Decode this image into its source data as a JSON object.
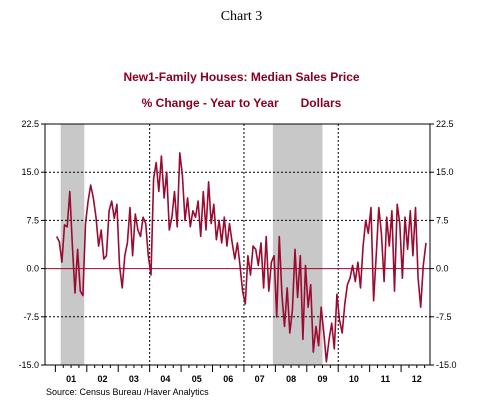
{
  "chart_number": "Chart 3",
  "source": "Source:  Census Bureau /Haver Analytics",
  "chart_data": {
    "type": "line",
    "title": "New1-Family Houses: Median Sales Price",
    "subtitle_left": "% Change - Year to Year",
    "subtitle_right": "Dollars",
    "ylim": [
      -15,
      22.5
    ],
    "xlim": [
      2000.67,
      2012.92
    ],
    "yticks": [
      "22.5",
      "15.0",
      "7.5",
      "0.0",
      "-7.5",
      "-15.0"
    ],
    "ytick_values": [
      22.5,
      15,
      7.5,
      0,
      -7.5,
      -15
    ],
    "year_labels": [
      "01",
      "02",
      "03",
      "04",
      "05",
      "06",
      "07",
      "08",
      "09",
      "10",
      "11",
      "12"
    ],
    "recession_shading": [
      [
        2001.17,
        2001.92
      ],
      [
        2007.92,
        2009.5
      ]
    ],
    "zero_line": true,
    "grid": "dashed vertical at year boundaries 2004, 2007, 2010; dashed horizontal at 15, 7.5, -7.5",
    "colors": {
      "line": "#9b0a30",
      "recession": "#c8c8c8",
      "zero_line": "#9b0a30",
      "grid": "#000000"
    },
    "series": [
      {
        "frequency": "monthly",
        "start": "2001-01",
        "values": [
          5.0,
          4.2,
          1.0,
          6.8,
          6.5,
          12.0,
          3.5,
          -3.8,
          3.0,
          -3.5,
          -4.2,
          7.0,
          10.5,
          13.0,
          11.0,
          8.0,
          3.5,
          6.0,
          1.5,
          2.0,
          9.0,
          10.5,
          7.8,
          10.0,
          0.5,
          -3.0,
          2.0,
          4.0,
          9.5,
          2.0,
          8.5,
          6.0,
          5.0,
          8.0,
          7.0,
          2.0,
          -1.0,
          14.0,
          16.5,
          12.0,
          17.5,
          11.0,
          15.0,
          6.0,
          8.0,
          12.0,
          6.5,
          18.0,
          14.5,
          7.5,
          11.0,
          6.5,
          9.0,
          8.0,
          10.5,
          5.0,
          12.0,
          6.0,
          13.5,
          7.0,
          10.0,
          4.5,
          7.5,
          4.0,
          8.0,
          3.5,
          7.0,
          4.0,
          1.5,
          4.0,
          0.5,
          -3.5,
          -5.5,
          2.0,
          -1.0,
          3.5,
          3.0,
          0.5,
          4.0,
          -3.0,
          5.0,
          -3.5,
          1.0,
          2.0,
          -7.5,
          5.0,
          -4.0,
          -9.0,
          -3.0,
          -10.0,
          -6.5,
          3.0,
          -4.5,
          2.0,
          -11.0,
          0.5,
          -6.0,
          -2.5,
          -13.0,
          -9.0,
          -12.0,
          -6.0,
          -10.0,
          -14.5,
          -11.0,
          -8.5,
          -12.5,
          -4.0,
          -8.0,
          -10.0,
          -5.5,
          -2.5,
          -1.5,
          0.5,
          -2.0,
          1.0,
          -3.0,
          3.5,
          7.5,
          5.5,
          9.5,
          -5.0,
          2.0,
          9.5,
          5.5,
          -2.0,
          8.0,
          3.5,
          9.0,
          -3.5,
          10.0,
          7.0,
          -1.5,
          8.0,
          3.0,
          9.0,
          2.0,
          9.5,
          -1.5,
          -6.0,
          0.5,
          4.0
        ]
      }
    ]
  }
}
